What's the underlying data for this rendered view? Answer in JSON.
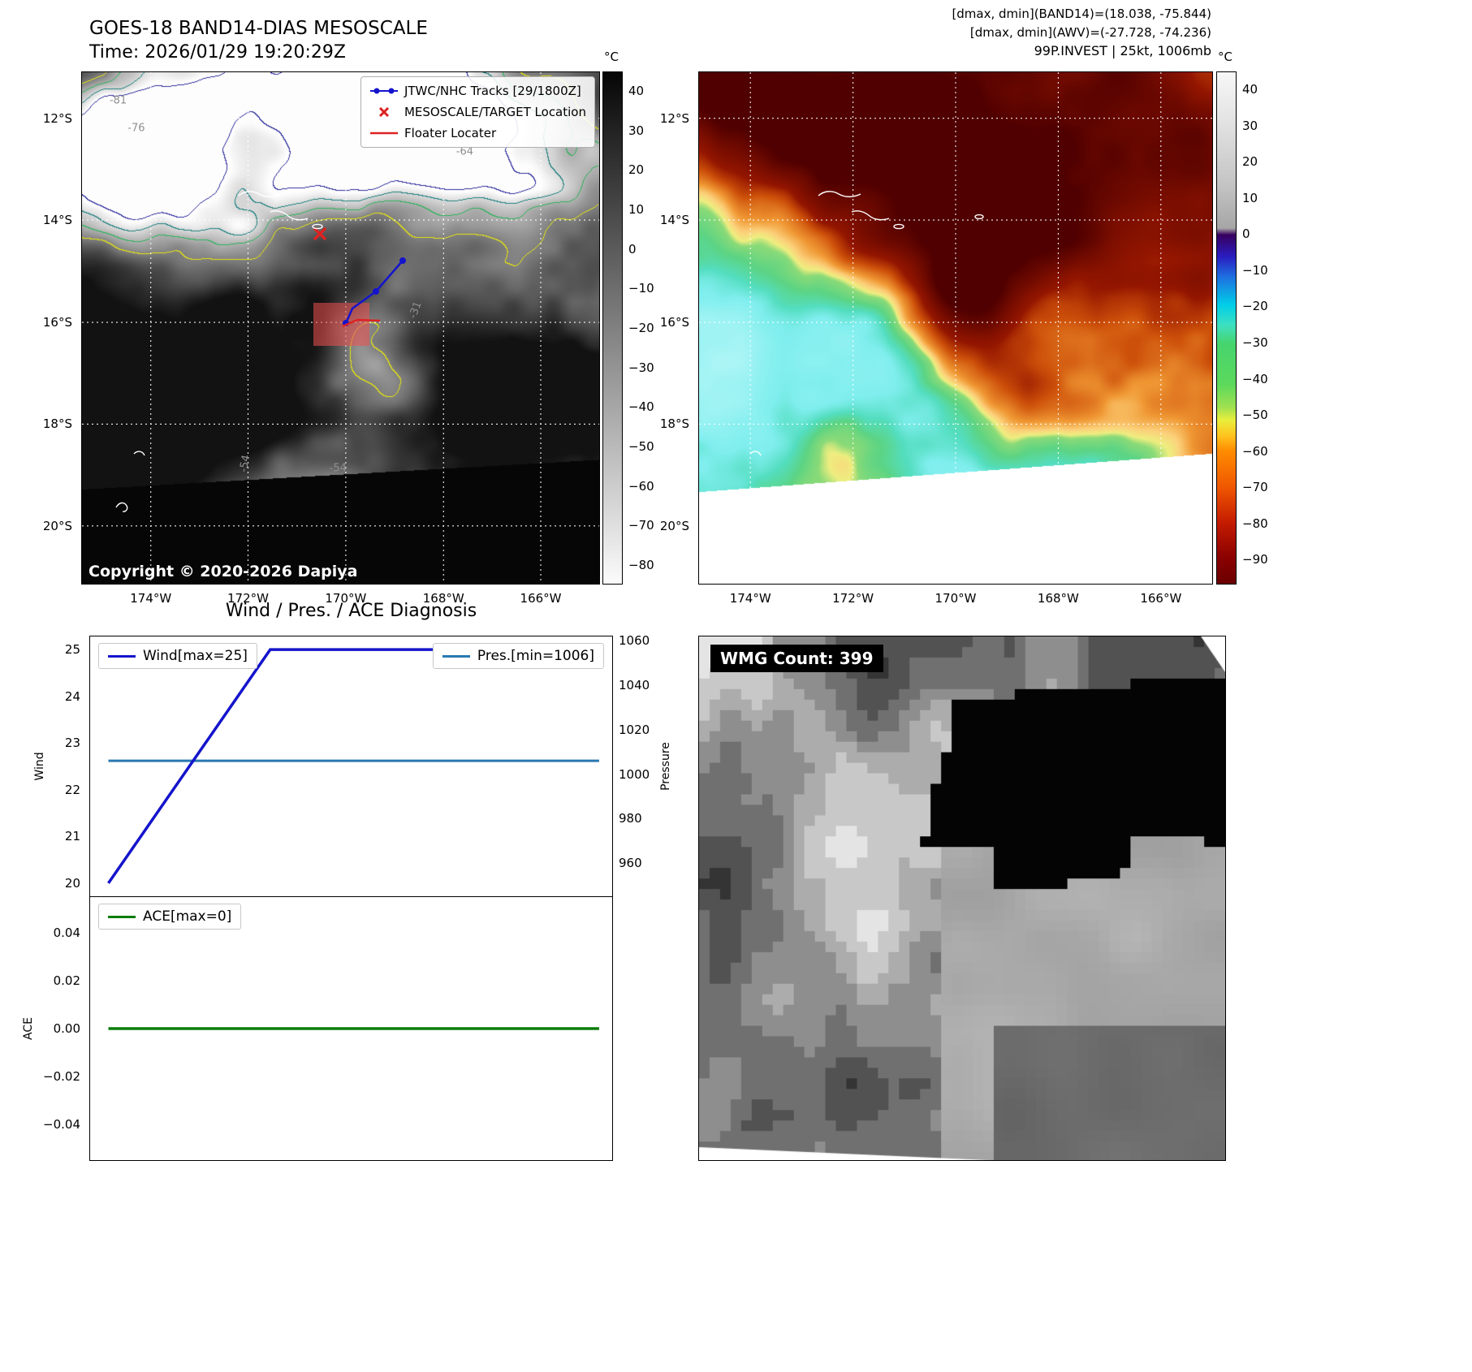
{
  "band14_panel": {
    "title": "GOES-18 BAND14-DIAS MESOSCALE",
    "time": "Time: 2026/01/29 19:20:29Z",
    "copyright": "Copyright © 2020-2026 Dapiya",
    "legend": {
      "track": "JTWC/NHC Tracks [29/1800Z]",
      "target": "MESOSCALE/TARGET Location",
      "floater": "Floater Locater"
    },
    "contour_labels": [
      "-81",
      "-76",
      "-64",
      "-31",
      "-54",
      "-54"
    ],
    "colorbar": {
      "unit": "°C",
      "ticks": [
        "40",
        "30",
        "20",
        "10",
        "0",
        "−10",
        "−20",
        "−30",
        "−40",
        "−50",
        "−60",
        "−70",
        "−80"
      ]
    }
  },
  "awv_panel": {
    "header": {
      "band14_minmax": "[dmax, dmin](BAND14)=(18.038, -75.844)",
      "awv_minmax": "[dmax, dmin](AWV)=(-27.728, -74.236)",
      "storm_status": "99P.INVEST | 25kt, 1006mb"
    },
    "colorbar": {
      "unit": "°C",
      "ticks": [
        "40",
        "30",
        "20",
        "10",
        "0",
        "−10",
        "−20",
        "−30",
        "−40",
        "−50",
        "−60",
        "−70",
        "−80",
        "−90"
      ]
    }
  },
  "map_axes": {
    "lat_ticks": [
      "12°S",
      "14°S",
      "16°S",
      "18°S",
      "20°S"
    ],
    "lon_ticks": [
      "174°W",
      "172°W",
      "170°W",
      "168°W",
      "166°W"
    ]
  },
  "diagnosis": {
    "title": "Wind / Pres. / ACE Diagnosis",
    "wind_ticks": [
      "25",
      "24",
      "23",
      "22",
      "21",
      "20"
    ],
    "pressure_ticks": [
      "1060",
      "1040",
      "1020",
      "1000",
      "980",
      "960"
    ],
    "ace_ticks": [
      "0.04",
      "0.02",
      "0.00",
      "−0.02",
      "−0.04"
    ]
  },
  "wmg_panel": {
    "label": "WMG Count: 399"
  },
  "colors": {
    "wind_line": "#1414cc",
    "pressure_line": "#2878b0",
    "ace_line": "#0a7d0a",
    "track_line": "#1414cc",
    "target_marker": "#dd2222"
  },
  "chart_data": [
    {
      "type": "line",
      "title": "Wind / Pres. / ACE Diagnosis",
      "left_ylabel": "Wind",
      "right_ylabel": "Pressure",
      "left_ylim": [
        19.72,
        25.28
      ],
      "right_ylim": [
        945,
        1062
      ],
      "series": [
        {
          "name": "Wind[max=25]",
          "axis": "left",
          "color": "#1414cc",
          "x": [
            0.035,
            0.345,
            0.975
          ],
          "y": [
            20,
            25,
            25
          ]
        },
        {
          "name": "Pres.[min=1006]",
          "axis": "right",
          "color": "#2878b0",
          "x": [
            0.035,
            0.975
          ],
          "y": [
            1006,
            1006
          ]
        }
      ]
    },
    {
      "type": "line",
      "left_ylabel": "ACE",
      "left_ylim": [
        -0.055,
        0.055
      ],
      "series": [
        {
          "name": "ACE[max=0]",
          "axis": "left",
          "color": "#0a7d0a",
          "x": [
            0.035,
            0.975
          ],
          "y": [
            0,
            0
          ]
        }
      ]
    }
  ]
}
